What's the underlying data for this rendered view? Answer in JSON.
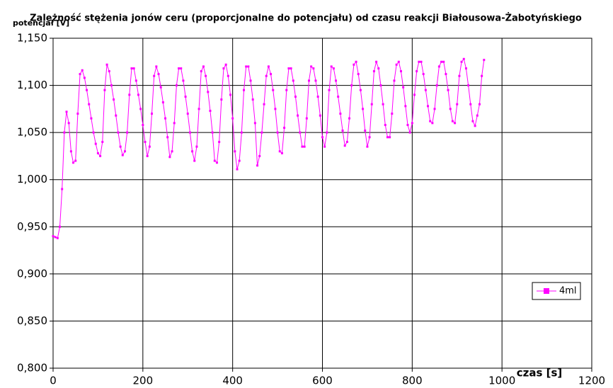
{
  "chart_data": {
    "type": "line",
    "title": "Zależność stężenia jonów ceru (proporcjonalne do potencjału) od czasu reakcji Białousowa-Żabotyńskiego",
    "y_label": "potencjał [V]",
    "x_label": "czas [s]",
    "xlim": [
      0,
      1200
    ],
    "xticks": [
      0,
      200,
      400,
      600,
      800,
      1000,
      1200
    ],
    "ylim": [
      0.8,
      1.15
    ],
    "yticks": [
      {
        "value": 0.8,
        "label": "0,800"
      },
      {
        "value": 0.85,
        "label": "0,850"
      },
      {
        "value": 0.9,
        "label": "0,900"
      },
      {
        "value": 0.95,
        "label": "0,950"
      },
      {
        "value": 1.0,
        "label": "1,000"
      },
      {
        "value": 1.05,
        "label": "1,050"
      },
      {
        "value": 1.1,
        "label": "1,100"
      },
      {
        "value": 1.15,
        "label": "1,150"
      }
    ],
    "grid": true,
    "legend": "right",
    "x": [
      0,
      5,
      10,
      15,
      20,
      25,
      30,
      35,
      40,
      45,
      50,
      55,
      60,
      65,
      70,
      75,
      80,
      85,
      90,
      95,
      100,
      105,
      110,
      115,
      120,
      125,
      130,
      135,
      140,
      145,
      150,
      155,
      160,
      165,
      170,
      175,
      180,
      185,
      190,
      195,
      200,
      205,
      210,
      215,
      220,
      225,
      230,
      235,
      240,
      245,
      250,
      255,
      260,
      265,
      270,
      275,
      280,
      285,
      290,
      295,
      300,
      305,
      310,
      315,
      320,
      325,
      330,
      335,
      340,
      345,
      350,
      355,
      360,
      365,
      370,
      375,
      380,
      385,
      390,
      395,
      400,
      405,
      410,
      415,
      420,
      425,
      430,
      435,
      440,
      445,
      450,
      455,
      460,
      465,
      470,
      475,
      480,
      485,
      490,
      495,
      500,
      505,
      510,
      515,
      520,
      525,
      530,
      535,
      540,
      545,
      550,
      555,
      560,
      565,
      570,
      575,
      580,
      585,
      590,
      595,
      600,
      605,
      610,
      615,
      620,
      625,
      630,
      635,
      640,
      645,
      650,
      655,
      660,
      665,
      670,
      675,
      680,
      685,
      690,
      695,
      700,
      705,
      710,
      715,
      720,
      725,
      730,
      735,
      740,
      745,
      750,
      755,
      760,
      765,
      770,
      775,
      780,
      785,
      790,
      795,
      800,
      805,
      810,
      815,
      820,
      825,
      830,
      835,
      840,
      845,
      850,
      855,
      860,
      865,
      870,
      875,
      880,
      885,
      890,
      895,
      900,
      905,
      910,
      915,
      920,
      925,
      930,
      935,
      940,
      945,
      950,
      955,
      960
    ],
    "series": [
      {
        "name": "4ml",
        "color": "#ff00ff",
        "values": [
          0.94,
          0.939,
          0.938,
          0.95,
          0.99,
          1.05,
          1.072,
          1.06,
          1.03,
          1.018,
          1.02,
          1.07,
          1.112,
          1.116,
          1.108,
          1.095,
          1.08,
          1.065,
          1.05,
          1.038,
          1.028,
          1.025,
          1.04,
          1.095,
          1.122,
          1.115,
          1.1,
          1.085,
          1.068,
          1.05,
          1.035,
          1.026,
          1.03,
          1.05,
          1.09,
          1.118,
          1.118,
          1.105,
          1.09,
          1.075,
          1.058,
          1.04,
          1.025,
          1.035,
          1.07,
          1.11,
          1.12,
          1.112,
          1.098,
          1.082,
          1.065,
          1.045,
          1.024,
          1.03,
          1.06,
          1.1,
          1.118,
          1.118,
          1.105,
          1.088,
          1.07,
          1.05,
          1.03,
          1.02,
          1.035,
          1.075,
          1.115,
          1.12,
          1.11,
          1.093,
          1.073,
          1.05,
          1.02,
          1.018,
          1.04,
          1.085,
          1.118,
          1.122,
          1.11,
          1.09,
          1.065,
          1.03,
          1.011,
          1.02,
          1.05,
          1.095,
          1.12,
          1.12,
          1.105,
          1.085,
          1.06,
          1.015,
          1.025,
          1.05,
          1.08,
          1.11,
          1.12,
          1.112,
          1.095,
          1.075,
          1.05,
          1.03,
          1.028,
          1.055,
          1.095,
          1.118,
          1.118,
          1.105,
          1.088,
          1.068,
          1.05,
          1.035,
          1.035,
          1.065,
          1.105,
          1.12,
          1.118,
          1.105,
          1.088,
          1.068,
          1.045,
          1.035,
          1.05,
          1.095,
          1.12,
          1.118,
          1.105,
          1.088,
          1.07,
          1.052,
          1.036,
          1.04,
          1.065,
          1.1,
          1.122,
          1.125,
          1.112,
          1.095,
          1.075,
          1.052,
          1.035,
          1.045,
          1.08,
          1.115,
          1.125,
          1.118,
          1.1,
          1.08,
          1.058,
          1.045,
          1.045,
          1.07,
          1.105,
          1.122,
          1.125,
          1.115,
          1.098,
          1.078,
          1.058,
          1.05,
          1.06,
          1.09,
          1.115,
          1.125,
          1.125,
          1.112,
          1.095,
          1.078,
          1.062,
          1.06,
          1.075,
          1.1,
          1.12,
          1.125,
          1.125,
          1.112,
          1.095,
          1.075,
          1.062,
          1.06,
          1.08,
          1.11,
          1.125,
          1.128,
          1.118,
          1.1,
          1.08,
          1.062,
          1.057,
          1.068,
          1.08,
          1.11,
          1.127
        ]
      }
    ]
  }
}
